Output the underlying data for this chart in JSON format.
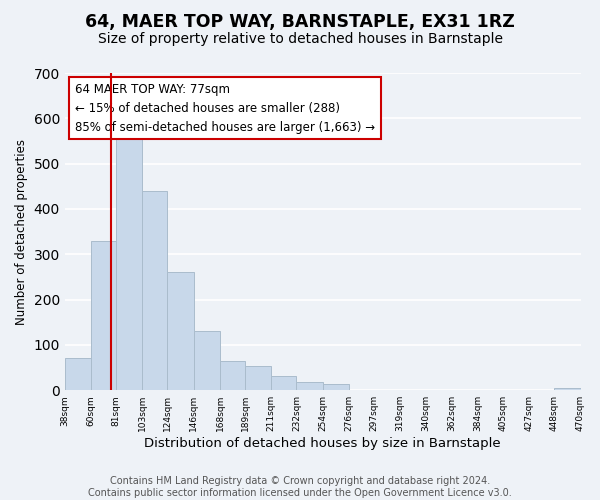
{
  "title": "64, MAER TOP WAY, BARNSTAPLE, EX31 1RZ",
  "subtitle": "Size of property relative to detached houses in Barnstaple",
  "xlabel": "Distribution of detached houses by size in Barnstaple",
  "ylabel": "Number of detached properties",
  "bar_edges": [
    38,
    60,
    81,
    103,
    124,
    146,
    168,
    189,
    211,
    232,
    254,
    276,
    297,
    319,
    340,
    362,
    384,
    405,
    427,
    448,
    470
  ],
  "bar_heights": [
    70,
    330,
    560,
    440,
    260,
    130,
    65,
    53,
    32,
    18,
    14,
    0,
    0,
    0,
    0,
    0,
    0,
    0,
    0,
    5
  ],
  "bar_color": "#c8d8ea",
  "bar_edgecolor": "#aabccc",
  "property_line_x": 77,
  "property_line_color": "#cc0000",
  "ylim": [
    0,
    700
  ],
  "yticks": [
    0,
    100,
    200,
    300,
    400,
    500,
    600,
    700
  ],
  "xtick_labels": [
    "38sqm",
    "60sqm",
    "81sqm",
    "103sqm",
    "124sqm",
    "146sqm",
    "168sqm",
    "189sqm",
    "211sqm",
    "232sqm",
    "254sqm",
    "276sqm",
    "297sqm",
    "319sqm",
    "340sqm",
    "362sqm",
    "384sqm",
    "405sqm",
    "427sqm",
    "448sqm",
    "470sqm"
  ],
  "annotation_box_text": "64 MAER TOP WAY: 77sqm\n← 15% of detached houses are smaller (288)\n85% of semi-detached houses are larger (1,663) →",
  "annotation_box_edgecolor": "#cc0000",
  "annotation_box_facecolor": "white",
  "footer_line1": "Contains HM Land Registry data © Crown copyright and database right 2024.",
  "footer_line2": "Contains public sector information licensed under the Open Government Licence v3.0.",
  "background_color": "#eef2f7",
  "grid_color": "white",
  "title_fontsize": 12.5,
  "subtitle_fontsize": 10,
  "xlabel_fontsize": 9.5,
  "ylabel_fontsize": 8.5,
  "annotation_fontsize": 8.5,
  "footer_fontsize": 7
}
